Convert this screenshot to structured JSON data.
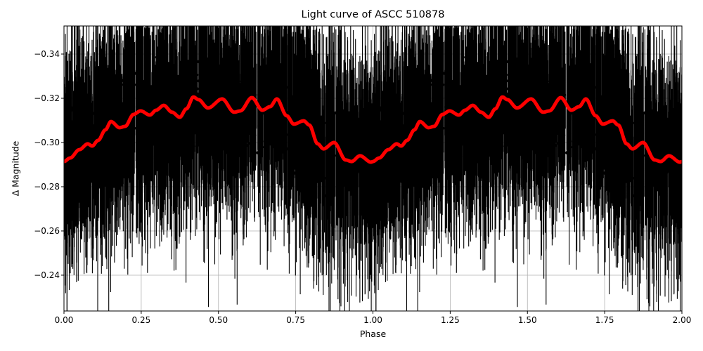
{
  "chart_data": {
    "type": "scatter",
    "title": "Light curve of ASCC 510878",
    "xlabel": "Phase",
    "ylabel": "Δ Magnitude",
    "xlim": [
      0.0,
      2.0
    ],
    "ylim": [
      -0.2238,
      -0.3527
    ],
    "y_inverted": true,
    "grid": true,
    "legend": null,
    "xticks": [
      "0.00",
      "0.25",
      "0.50",
      "0.75",
      "1.00",
      "1.25",
      "1.50",
      "1.75",
      "2.00"
    ],
    "xtick_values": [
      0.0,
      0.25,
      0.5,
      0.75,
      1.0,
      1.25,
      1.5,
      1.75,
      2.0
    ],
    "yticks": [
      "−0.34",
      "−0.32",
      "−0.30",
      "−0.28",
      "−0.26",
      "−0.24"
    ],
    "ytick_values": [
      -0.34,
      -0.32,
      -0.3,
      -0.28,
      -0.26,
      -0.24
    ],
    "series": [
      {
        "name": "observations (errorbar points)",
        "type": "errorbar-scatter",
        "color": "#000000",
        "description": "Dense phase-folded photometry, repeated over two cycles; values scatter roughly between -0.35 and -0.22 with large error bars",
        "approx_center_follows": "smoothed model",
        "approx_scatter_sigma": 0.018
      },
      {
        "name": "smoothed model",
        "type": "line",
        "color": "#ff0000",
        "linewidth": 4,
        "x": [
          0.0,
          0.02,
          0.05,
          0.077,
          0.091,
          0.111,
          0.134,
          0.152,
          0.18,
          0.198,
          0.225,
          0.248,
          0.278,
          0.298,
          0.323,
          0.35,
          0.375,
          0.396,
          0.419,
          0.435,
          0.466,
          0.512,
          0.551,
          0.571,
          0.608,
          0.642,
          0.667,
          0.689,
          0.721,
          0.744,
          0.776,
          0.794,
          0.821,
          0.84,
          0.874,
          0.912,
          0.931,
          0.958,
          0.994,
          1.0
        ],
        "y": [
          -0.2914,
          -0.293,
          -0.2968,
          -0.2994,
          -0.2984,
          -0.301,
          -0.3057,
          -0.3095,
          -0.3067,
          -0.3073,
          -0.3127,
          -0.3143,
          -0.3124,
          -0.3146,
          -0.3168,
          -0.3137,
          -0.3114,
          -0.3152,
          -0.3206,
          -0.3194,
          -0.3156,
          -0.3197,
          -0.3137,
          -0.3143,
          -0.3203,
          -0.3146,
          -0.3162,
          -0.3197,
          -0.3121,
          -0.3083,
          -0.3098,
          -0.3079,
          -0.2994,
          -0.2971,
          -0.3,
          -0.2921,
          -0.2914,
          -0.294,
          -0.2911,
          -0.2914
        ],
        "repeats_with_period": 1.0
      }
    ]
  }
}
